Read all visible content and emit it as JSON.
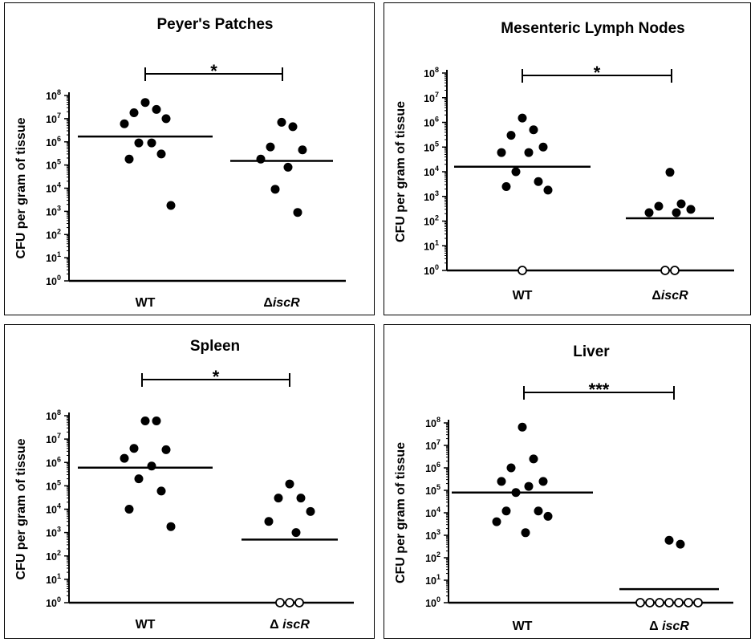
{
  "chart_data": [
    {
      "type": "scatter",
      "title": "Peyer's Patches",
      "ylabel": "CFU per gram of tissue",
      "yscale": "log10",
      "ylim": [
        1,
        100000000
      ],
      "yticks": [
        "10^0",
        "10^1",
        "10^2",
        "10^3",
        "10^4",
        "10^5",
        "10^6",
        "10^7",
        "10^8"
      ],
      "categories": [
        "WT",
        "ΔiscR"
      ],
      "categories_italic_part": [
        "",
        "iscR"
      ],
      "series": [
        {
          "values": [
            50000000,
            25000000,
            18000000,
            10000000,
            6000000,
            900000,
            900000,
            300000,
            180000,
            1800
          ],
          "detection_limit_points": 0,
          "median": 1700000
        },
        {
          "values": [
            7000000,
            4500000,
            600000,
            450000,
            180000,
            80000,
            9000,
            900
          ],
          "detection_limit_points": 0,
          "median": 150000
        }
      ],
      "significance": "*"
    },
    {
      "type": "scatter",
      "title": "Mesenteric Lymph Nodes",
      "ylabel": "CFU per gram of tissue",
      "yscale": "log10",
      "ylim": [
        1,
        100000000
      ],
      "yticks": [
        "10^0",
        "10^1",
        "10^2",
        "10^3",
        "10^4",
        "10^5",
        "10^6",
        "10^7",
        "10^8"
      ],
      "categories": [
        "WT",
        "ΔiscR"
      ],
      "categories_italic_part": [
        "",
        "iscR"
      ],
      "series": [
        {
          "values": [
            1500000,
            500000,
            300000,
            100000,
            60000,
            60000,
            10000,
            4000,
            2500,
            1800
          ],
          "detection_limit_points": 1,
          "median": 16000
        },
        {
          "values": [
            9500,
            500,
            300,
            220,
            220,
            400
          ],
          "detection_limit_points": 2,
          "median": 130
        }
      ],
      "significance": "*"
    },
    {
      "type": "scatter",
      "title": "Spleen",
      "ylabel": "CFU per gram of tissue",
      "yscale": "log10",
      "ylim": [
        1,
        100000000
      ],
      "yticks": [
        "10^0",
        "10^1",
        "10^2",
        "10^3",
        "10^4",
        "10^5",
        "10^6",
        "10^7",
        "10^8"
      ],
      "categories": [
        "WT",
        "Δ iscR"
      ],
      "categories_italic_part": [
        "",
        "iscR"
      ],
      "series": [
        {
          "values": [
            60000000,
            60000000,
            4000000,
            3500000,
            1500000,
            700000,
            200000,
            60000,
            10000,
            1800
          ],
          "detection_limit_points": 0,
          "median": 600000
        },
        {
          "values": [
            120000,
            30000,
            30000,
            8000,
            3000,
            1000
          ],
          "detection_limit_points": 3,
          "median": 500
        }
      ],
      "significance": "*"
    },
    {
      "type": "scatter",
      "title": "Liver",
      "ylabel": "CFU per gram of tissue",
      "yscale": "log10",
      "ylim": [
        1,
        100000000
      ],
      "yticks": [
        "10^0",
        "10^1",
        "10^2",
        "10^3",
        "10^4",
        "10^5",
        "10^6",
        "10^7",
        "10^8"
      ],
      "categories": [
        "WT",
        "Δ iscR"
      ],
      "categories_italic_part": [
        "",
        "iscR"
      ],
      "series": [
        {
          "values": [
            65000000,
            2500000,
            1000000,
            250000,
            250000,
            150000,
            80000,
            12000,
            12000,
            7000,
            4000,
            1300
          ],
          "detection_limit_points": 0,
          "median": 80000
        },
        {
          "values": [
            600,
            400
          ],
          "detection_limit_points": 7,
          "median": 4
        }
      ],
      "significance": "***"
    }
  ]
}
